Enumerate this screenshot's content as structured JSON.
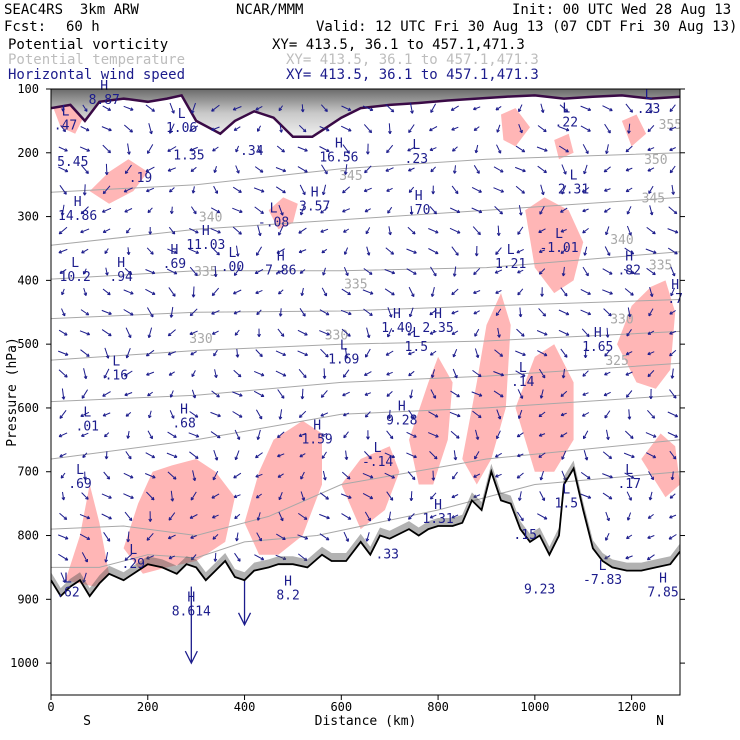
{
  "header": {
    "model": "SEAC4RS  3km ARW",
    "center": "NCAR/MMM",
    "init": "Init: 00 UTC Wed 28 Aug 13",
    "fcst_label": "Fcst:",
    "fcst_value": "60 h",
    "valid": "Valid: 12 UTC Fri 30 Aug 13 (07 CDT Fri 30 Aug 13)",
    "fields": [
      {
        "name": "Potential vorticity",
        "xy": "XY= 413.5, 36.1 to 457.1,471.3",
        "color": "#000000"
      },
      {
        "name": "Potential temperature",
        "xy": "XY= 413.5, 36.1 to 457.1,471.3",
        "color": "#bdbdbd"
      },
      {
        "name": "Horizontal wind speed",
        "xy": "XY= 413.5, 36.1 to 457.1,471.3",
        "color": "#1c1c8c"
      }
    ]
  },
  "chart_data": {
    "type": "cross-section",
    "ylabel": "Pressure (hPa)",
    "xlabel": "Distance (km)",
    "xlim": [
      0,
      1300
    ],
    "ylim": [
      1050,
      100
    ],
    "x_ticks": [
      0,
      200,
      400,
      600,
      800,
      1000,
      1200
    ],
    "y_ticks": [
      100,
      200,
      300,
      400,
      500,
      600,
      700,
      800,
      900,
      1000
    ],
    "left_end": "S",
    "right_end": "N",
    "colors": {
      "pv_fill": "#ffb6b6",
      "theta": "#a8a8a8",
      "wind": "#1c1c8c",
      "terrain": "#000000",
      "pv_contour": "#3a0a46"
    },
    "theta_contours": [
      {
        "label": "355",
        "x": 1280,
        "p": 155
      },
      {
        "label": "350",
        "x": 1250,
        "p": 210
      },
      {
        "label": "345",
        "x": 1245,
        "p": 270
      },
      {
        "label": "340",
        "x": 1180,
        "p": 335
      },
      {
        "label": "340",
        "x": 330,
        "p": 300
      },
      {
        "label": "345",
        "x": 620,
        "p": 235
      },
      {
        "label": "335",
        "x": 320,
        "p": 385
      },
      {
        "label": "335",
        "x": 630,
        "p": 405
      },
      {
        "label": "335",
        "x": 1260,
        "p": 375
      },
      {
        "label": "330",
        "x": 310,
        "p": 490
      },
      {
        "label": "330",
        "x": 590,
        "p": 485
      },
      {
        "label": "330",
        "x": 1180,
        "p": 460
      },
      {
        "label": "325",
        "x": 1170,
        "p": 525
      }
    ],
    "extrema": [
      {
        "type": "H",
        "label": "8.87",
        "x": 110,
        "p": 108
      },
      {
        "type": "L",
        "label": ".47",
        "x": 30,
        "p": 148
      },
      {
        "type": "L",
        "label": "1.06",
        "x": 270,
        "p": 152
      },
      {
        "type": "",
        "label": "5.45",
        "x": 45,
        "p": 205
      },
      {
        "type": "",
        "label": "1.35",
        "x": 285,
        "p": 195
      },
      {
        "type": "",
        "label": ".34",
        "x": 415,
        "p": 188
      },
      {
        "type": "L",
        "label": ".23",
        "x": 755,
        "p": 200
      },
      {
        "type": "H",
        "label": "16.56",
        "x": 595,
        "p": 198
      },
      {
        "type": "L",
        "label": ".22",
        "x": 1065,
        "p": 143
      },
      {
        "type": "L",
        "label": ".23",
        "x": 1235,
        "p": 122
      },
      {
        "type": "",
        "label": ".19",
        "x": 185,
        "p": 230
      },
      {
        "type": "L",
        "label": "2.31",
        "x": 1080,
        "p": 248
      },
      {
        "type": "H",
        "label": "14.86",
        "x": 55,
        "p": 290
      },
      {
        "type": "H",
        "label": "3.57",
        "x": 545,
        "p": 275
      },
      {
        "type": "L",
        "label": "-.08",
        "x": 460,
        "p": 300
      },
      {
        "type": "H",
        "label": ".70",
        "x": 760,
        "p": 280
      },
      {
        "type": "H",
        "label": "11.03",
        "x": 320,
        "p": 335
      },
      {
        "type": "L",
        "label": "10.2",
        "x": 50,
        "p": 385
      },
      {
        "type": "H",
        "label": ".94",
        "x": 145,
        "p": 385
      },
      {
        "type": "H",
        "label": ".69",
        "x": 255,
        "p": 365
      },
      {
        "type": "L",
        "label": ".00",
        "x": 375,
        "p": 370
      },
      {
        "type": "H",
        "label": "7.86",
        "x": 475,
        "p": 375
      },
      {
        "type": "L",
        "label": "1.21",
        "x": 950,
        "p": 365
      },
      {
        "type": "L",
        "label": "-1.01",
        "x": 1050,
        "p": 340
      },
      {
        "type": "H",
        "label": ".82",
        "x": 1195,
        "p": 375
      },
      {
        "type": "H",
        "label": ".7",
        "x": 1290,
        "p": 420
      },
      {
        "type": "H",
        "label": "1.40",
        "x": 715,
        "p": 465
      },
      {
        "type": "H",
        "label": "2.35",
        "x": 800,
        "p": 465
      },
      {
        "type": "L",
        "label": "1.5",
        "x": 755,
        "p": 495
      },
      {
        "type": "L",
        "label": "1.69",
        "x": 605,
        "p": 515
      },
      {
        "type": "H",
        "label": "1.65",
        "x": 1130,
        "p": 495
      },
      {
        "type": "L",
        "label": ".16",
        "x": 135,
        "p": 540
      },
      {
        "type": "L",
        "label": ".14",
        "x": 975,
        "p": 550
      },
      {
        "type": "L",
        "label": ".01",
        "x": 75,
        "p": 620
      },
      {
        "type": "H",
        "label": ".68",
        "x": 275,
        "p": 615
      },
      {
        "type": "H",
        "label": "9.28",
        "x": 725,
        "p": 610
      },
      {
        "type": "H",
        "label": "1.59",
        "x": 550,
        "p": 640
      },
      {
        "type": "L",
        "label": "-.14",
        "x": 675,
        "p": 675
      },
      {
        "type": "L",
        "label": ".69",
        "x": 60,
        "p": 710
      },
      {
        "type": "L",
        "label": ".17",
        "x": 1195,
        "p": 710
      },
      {
        "type": "L",
        "label": "1.5",
        "x": 1065,
        "p": 740
      },
      {
        "type": "H",
        "label": "1.31",
        "x": 800,
        "p": 765
      },
      {
        "type": "",
        "label": ".15",
        "x": 980,
        "p": 790
      },
      {
        "type": "",
        "label": ".33",
        "x": 695,
        "p": 820
      },
      {
        "type": "L",
        "label": ".29",
        "x": 170,
        "p": 835
      },
      {
        "type": "H",
        "label": "8.2",
        "x": 490,
        "p": 885
      },
      {
        "type": "L",
        "label": ".62",
        "x": 35,
        "p": 880
      },
      {
        "type": "H",
        "label": "8.614",
        "x": 290,
        "p": 910
      },
      {
        "type": "",
        "label": "9.23",
        "x": 1010,
        "p": 875
      },
      {
        "type": "L",
        "label": "-7.83",
        "x": 1140,
        "p": 860
      },
      {
        "type": "H",
        "label": "7.85",
        "x": 1265,
        "p": 880
      }
    ],
    "terrain_profile": [
      [
        0,
        870
      ],
      [
        20,
        895
      ],
      [
        40,
        880
      ],
      [
        60,
        870
      ],
      [
        80,
        895
      ],
      [
        100,
        875
      ],
      [
        120,
        860
      ],
      [
        150,
        870
      ],
      [
        180,
        855
      ],
      [
        200,
        845
      ],
      [
        230,
        850
      ],
      [
        260,
        860
      ],
      [
        280,
        845
      ],
      [
        300,
        850
      ],
      [
        320,
        870
      ],
      [
        340,
        855
      ],
      [
        360,
        840
      ],
      [
        380,
        865
      ],
      [
        400,
        870
      ],
      [
        420,
        855
      ],
      [
        450,
        850
      ],
      [
        470,
        845
      ],
      [
        500,
        845
      ],
      [
        530,
        850
      ],
      [
        560,
        830
      ],
      [
        580,
        840
      ],
      [
        610,
        840
      ],
      [
        640,
        810
      ],
      [
        660,
        830
      ],
      [
        680,
        800
      ],
      [
        700,
        805
      ],
      [
        740,
        790
      ],
      [
        760,
        800
      ],
      [
        780,
        790
      ],
      [
        800,
        785
      ],
      [
        830,
        785
      ],
      [
        850,
        780
      ],
      [
        870,
        745
      ],
      [
        890,
        760
      ],
      [
        910,
        700
      ],
      [
        930,
        745
      ],
      [
        950,
        750
      ],
      [
        970,
        790
      ],
      [
        990,
        810
      ],
      [
        1010,
        800
      ],
      [
        1030,
        830
      ],
      [
        1050,
        800
      ],
      [
        1060,
        720
      ],
      [
        1080,
        695
      ],
      [
        1100,
        760
      ],
      [
        1120,
        820
      ],
      [
        1140,
        840
      ],
      [
        1160,
        850
      ],
      [
        1190,
        855
      ],
      [
        1220,
        855
      ],
      [
        1250,
        850
      ],
      [
        1280,
        845
      ],
      [
        1300,
        825
      ]
    ]
  }
}
